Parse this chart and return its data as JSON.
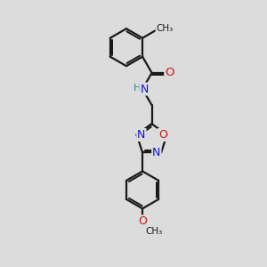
{
  "bg_color": "#dcdcdc",
  "bond_color": "#1a1a1a",
  "bond_width": 1.6,
  "atom_colors": {
    "C": "#1a1a1a",
    "N": "#1515cc",
    "O": "#cc1515",
    "H": "#2a8a8a"
  },
  "font_size": 8.5
}
